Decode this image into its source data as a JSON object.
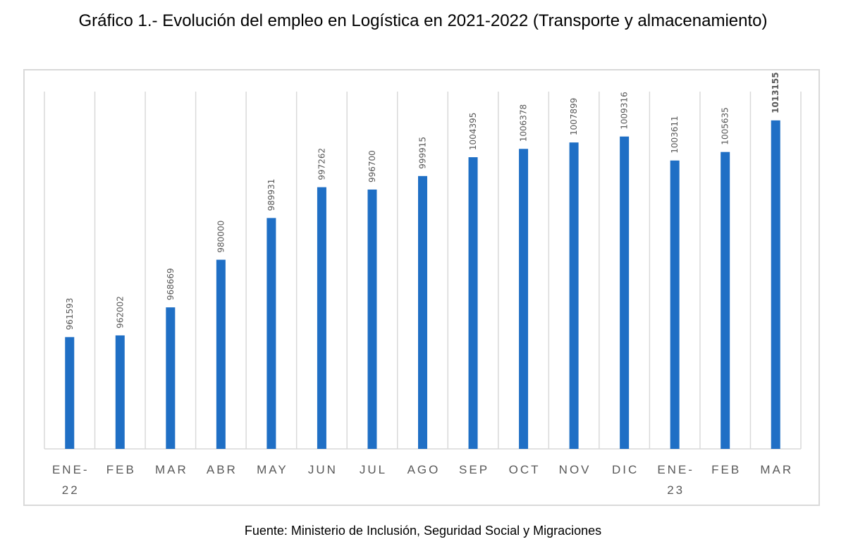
{
  "title": "Gráfico 1.- Evolución del empleo en Logística en 2021-2022 (Transporte y almacenamiento)",
  "source": "Fuente: Ministerio de Inclusión, Seguridad Social y Migraciones",
  "chart_data": {
    "type": "bar",
    "title": "Gráfico 1.- Evolución del empleo en Logística en 2021-2022 (Transporte y almacenamiento)",
    "xlabel": "",
    "ylabel": "",
    "categories": [
      "ENE-22",
      "FEB",
      "MAR",
      "ABR",
      "MAY",
      "JUN",
      "JUL",
      "AGO",
      "SEP",
      "OCT",
      "NOV",
      "DIC",
      "ENE-23",
      "FEB",
      "MAR"
    ],
    "tick_labels": [
      [
        "ENE-",
        "22"
      ],
      [
        "FEB"
      ],
      [
        "MAR"
      ],
      [
        "ABR"
      ],
      [
        "MAY"
      ],
      [
        "JUN"
      ],
      [
        "JUL"
      ],
      [
        "AGO"
      ],
      [
        "SEP"
      ],
      [
        "OCT"
      ],
      [
        "NOV"
      ],
      [
        "DIC"
      ],
      [
        "ENE-",
        "23"
      ],
      [
        "FEB"
      ],
      [
        "MAR"
      ]
    ],
    "values": [
      961593,
      962002,
      968669,
      980000,
      989931,
      997262,
      996700,
      999915,
      1004395,
      1006378,
      1007899,
      1009316,
      1003611,
      1005635,
      1013155
    ],
    "data_labels": [
      "961593",
      "962002",
      "968669",
      "980000",
      "989931",
      "997262",
      "996700",
      "999915",
      "1004395",
      "1006378",
      "1007899",
      "1009316",
      "1003611",
      "1005635",
      "1013155"
    ],
    "highlighted_label_index": 14,
    "ylim": [
      935000,
      1020000
    ],
    "grid": "vertical",
    "legend": "none",
    "bar_color": "#1f6fc5",
    "grid_color": "#d9d9d9",
    "label_color": "#595959"
  }
}
